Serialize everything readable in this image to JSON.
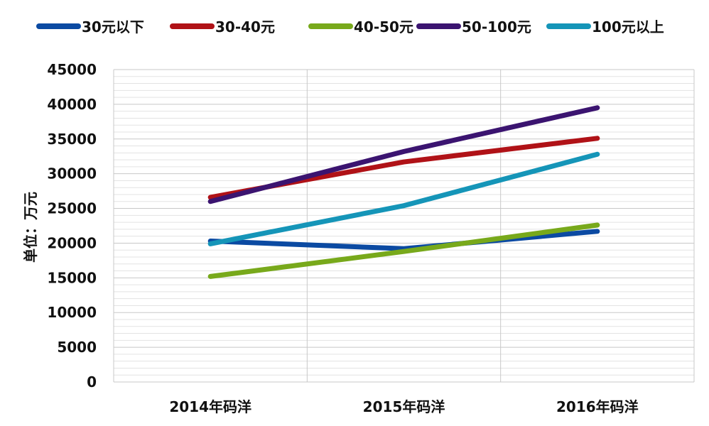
{
  "chart_data": {
    "type": "line",
    "title": "",
    "xlabel": "",
    "ylabel": "单位：万元",
    "categories": [
      "2014年码洋",
      "2015年码洋",
      "2016年码洋"
    ],
    "ylim": [
      0,
      45000
    ],
    "yticks": [
      0,
      5000,
      10000,
      15000,
      20000,
      25000,
      30000,
      35000,
      40000,
      45000
    ],
    "grid": true,
    "legend_position": "top",
    "series": [
      {
        "name": "30元以下",
        "color": "#0b4aa2",
        "values": [
          20300,
          19200,
          21700
        ]
      },
      {
        "name": "30-40元",
        "color": "#b01217",
        "values": [
          26600,
          31700,
          35100
        ]
      },
      {
        "name": "40-50元",
        "color": "#78a91b",
        "values": [
          15200,
          18800,
          22600
        ]
      },
      {
        "name": "50-100元",
        "color": "#3b1470",
        "values": [
          26000,
          33200,
          39500
        ]
      },
      {
        "name": "100元以上",
        "color": "#1595b8",
        "values": [
          19900,
          25400,
          32800
        ]
      }
    ]
  }
}
